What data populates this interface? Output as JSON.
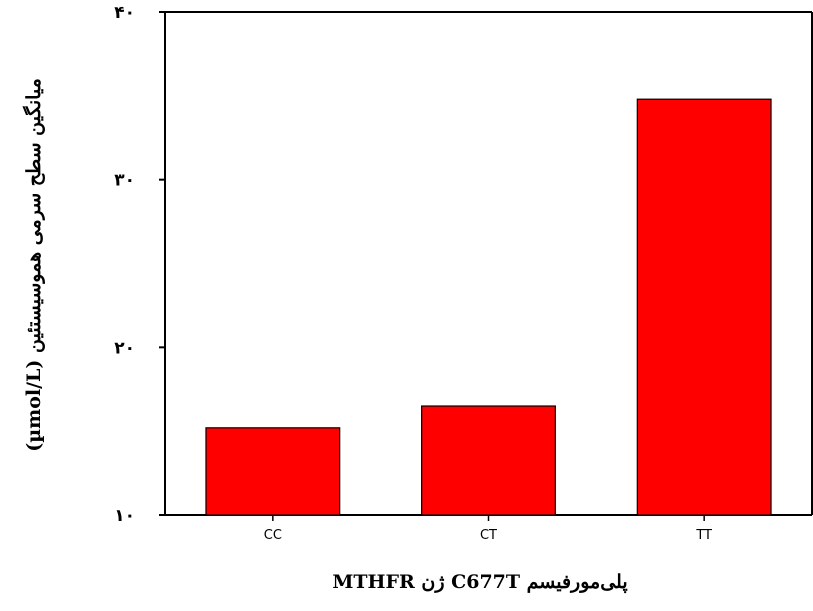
{
  "colors": {
    "bar_fill": "#ff0000",
    "bar_stroke": "#000000",
    "axis": "#000000",
    "background": "#ffffff"
  },
  "chart_data": {
    "type": "bar",
    "categories": [
      "CC",
      "CT",
      "TT"
    ],
    "values": [
      15.2,
      16.5,
      34.8
    ],
    "y_tick_values": [
      10,
      20,
      30,
      40
    ],
    "y_tick_labels": [
      "۱۰",
      "۲۰",
      "۳۰",
      "۴۰"
    ],
    "ylim": [
      10,
      40
    ],
    "xlabel": "پلی‌مورفیسم C677T ژن MTHFR",
    "ylabel": "میانگین سطح سرمی هموسیستئین (µmol/L)",
    "grid": false,
    "legend": "none"
  }
}
